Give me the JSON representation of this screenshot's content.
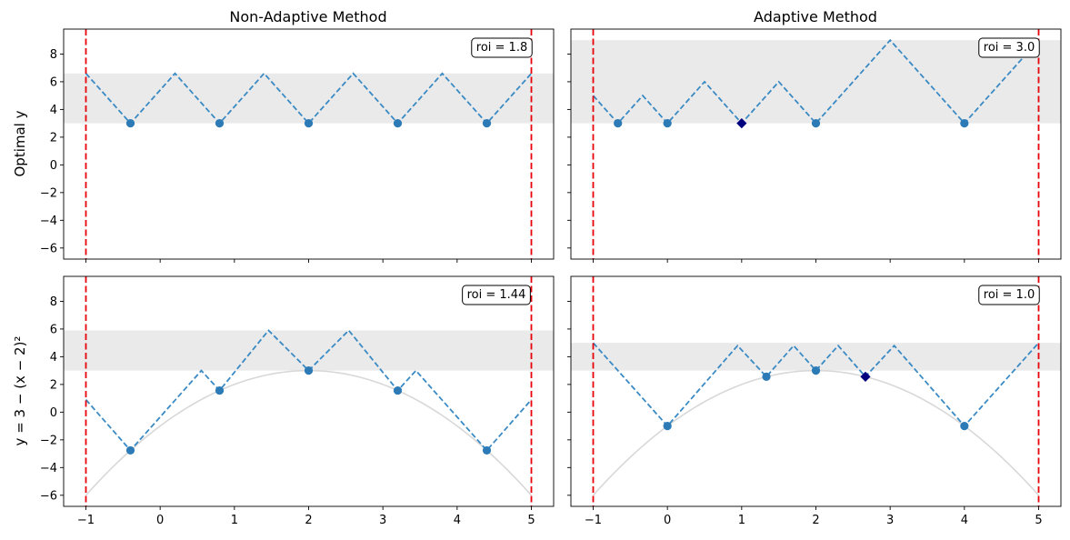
{
  "chart_data": [
    {
      "type": "line",
      "panel": "top-left",
      "title": "Non-Adaptive Method",
      "ylabel": "Optimal y",
      "xlim": [
        -1.3,
        5.3
      ],
      "ylim": [
        -6.8,
        9.8
      ],
      "xticks": [
        -1,
        0,
        1,
        2,
        3,
        4,
        5
      ],
      "yticks": [
        -6,
        -4,
        -2,
        0,
        2,
        4,
        6,
        8
      ],
      "show_xtick_labels": false,
      "show_ytick_labels": true,
      "boundaries": [
        -1,
        5
      ],
      "band": [
        3.0,
        6.6
      ],
      "roi_label": "roi = 1.8",
      "envelope": [
        [
          -1,
          6.6
        ],
        [
          -0.4,
          3.0
        ],
        [
          0.2,
          6.6
        ],
        [
          0.8,
          3.0
        ],
        [
          1.4,
          6.6
        ],
        [
          2.0,
          3.0
        ],
        [
          2.6,
          6.6
        ],
        [
          3.2,
          3.0
        ],
        [
          3.8,
          6.6
        ],
        [
          4.4,
          3.0
        ],
        [
          5,
          6.6
        ]
      ],
      "points": [
        [
          -0.4,
          3.0
        ],
        [
          0.8,
          3.0
        ],
        [
          2.0,
          3.0
        ],
        [
          3.2,
          3.0
        ],
        [
          4.4,
          3.0
        ]
      ],
      "next_point": null,
      "curve": null
    },
    {
      "type": "line",
      "panel": "top-right",
      "title": "Adaptive Method",
      "ylabel": "",
      "xlim": [
        -1.3,
        5.3
      ],
      "ylim": [
        -6.8,
        9.8
      ],
      "xticks": [
        -1,
        0,
        1,
        2,
        3,
        4,
        5
      ],
      "yticks": [
        -6,
        -4,
        -2,
        0,
        2,
        4,
        6,
        8
      ],
      "show_xtick_labels": false,
      "show_ytick_labels": false,
      "boundaries": [
        -1,
        5
      ],
      "band": [
        3.0,
        9.0
      ],
      "roi_label": "roi = 3.0",
      "envelope": [
        [
          -1,
          5.0
        ],
        [
          -0.667,
          3.0
        ],
        [
          -0.333,
          5.0
        ],
        [
          0,
          3.0
        ],
        [
          0.5,
          6.0
        ],
        [
          1.0,
          3.0
        ],
        [
          1.5,
          6.0
        ],
        [
          2.0,
          3.0
        ],
        [
          3.0,
          9.0
        ],
        [
          4.0,
          3.0
        ],
        [
          5,
          9.0
        ]
      ],
      "points": [
        [
          -0.667,
          3.0
        ],
        [
          0,
          3.0
        ],
        [
          2.0,
          3.0
        ],
        [
          4.0,
          3.0
        ]
      ],
      "next_point": [
        1.0,
        3.0
      ],
      "curve": null
    },
    {
      "type": "line",
      "panel": "bottom-left",
      "title": "",
      "ylabel": "y = 3 − (x − 2)²",
      "xlim": [
        -1.3,
        5.3
      ],
      "ylim": [
        -6.8,
        9.8
      ],
      "xticks": [
        -1,
        0,
        1,
        2,
        3,
        4,
        5
      ],
      "yticks": [
        -6,
        -4,
        -2,
        0,
        2,
        4,
        6,
        8
      ],
      "show_xtick_labels": true,
      "show_ytick_labels": true,
      "boundaries": [
        -1,
        5
      ],
      "band": [
        3.0,
        5.9
      ],
      "roi_label": "roi = 1.44",
      "envelope": [
        [
          -1,
          0.9
        ],
        [
          -0.4,
          -2.76
        ],
        [
          0.555,
          3.0
        ],
        [
          0.8,
          1.56
        ],
        [
          1.46,
          5.9
        ],
        [
          2.0,
          3.0
        ],
        [
          2.54,
          5.9
        ],
        [
          3.2,
          1.56
        ],
        [
          3.445,
          3.0
        ],
        [
          4.4,
          -2.76
        ],
        [
          5,
          0.9
        ]
      ],
      "points": [
        [
          -0.4,
          -2.76
        ],
        [
          0.8,
          1.56
        ],
        [
          2.0,
          3.0
        ],
        [
          3.2,
          1.56
        ],
        [
          4.4,
          -2.76
        ]
      ],
      "next_point": null,
      "curve": "y = 3 - (x - 2)^2"
    },
    {
      "type": "line",
      "panel": "bottom-right",
      "title": "",
      "ylabel": "",
      "xlim": [
        -1.3,
        5.3
      ],
      "ylim": [
        -6.8,
        9.8
      ],
      "xticks": [
        -1,
        0,
        1,
        2,
        3,
        4,
        5
      ],
      "yticks": [
        -6,
        -4,
        -2,
        0,
        2,
        4,
        6,
        8
      ],
      "show_xtick_labels": true,
      "show_ytick_labels": false,
      "boundaries": [
        -1,
        5
      ],
      "band": [
        3.0,
        5.0
      ],
      "roi_label": "roi = 1.0",
      "envelope": [
        [
          -1,
          5.0
        ],
        [
          0,
          -1.0
        ],
        [
          0.945,
          4.8
        ],
        [
          1.333,
          2.56
        ],
        [
          1.7,
          4.8
        ],
        [
          2.0,
          3.0
        ],
        [
          2.3,
          4.8
        ],
        [
          2.667,
          2.56
        ],
        [
          3.055,
          4.8
        ],
        [
          4.0,
          -1.0
        ],
        [
          5,
          5.0
        ]
      ],
      "points": [
        [
          0,
          -1.0
        ],
        [
          1.333,
          2.56
        ],
        [
          2.0,
          3.0
        ],
        [
          4.0,
          -1.0
        ]
      ],
      "next_point": [
        2.667,
        2.56
      ],
      "curve": "y = 3 - (x - 2)^2"
    }
  ],
  "colors": {
    "envelope": "#3a8ac4",
    "points": "#2c7bb6",
    "next_point": "#00007f",
    "boundary": "#e8000b",
    "band": "#eaeaea",
    "curve": "#d8d8d8"
  }
}
